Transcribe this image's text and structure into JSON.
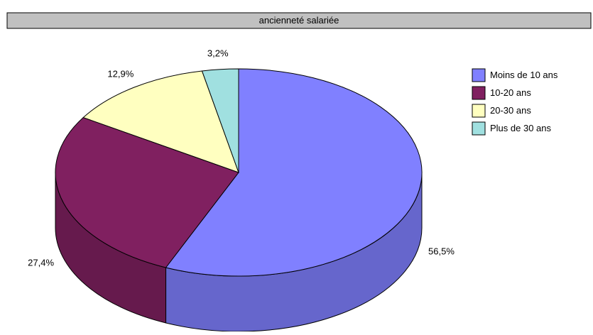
{
  "chart_data": {
    "type": "pie",
    "title": "ancienneté salariée",
    "categories": [
      "Moins de 10 ans",
      "10-20 ans",
      "20-30 ans",
      "Plus de 30 ans"
    ],
    "values": [
      56.5,
      27.4,
      12.9,
      3.2
    ],
    "value_labels": [
      "56,5%",
      "27,4%",
      "12,9%",
      "3,2%"
    ],
    "colors": [
      "#8080ff",
      "#802060",
      "#ffffc0",
      "#a0e0e0"
    ],
    "legend": "right"
  }
}
